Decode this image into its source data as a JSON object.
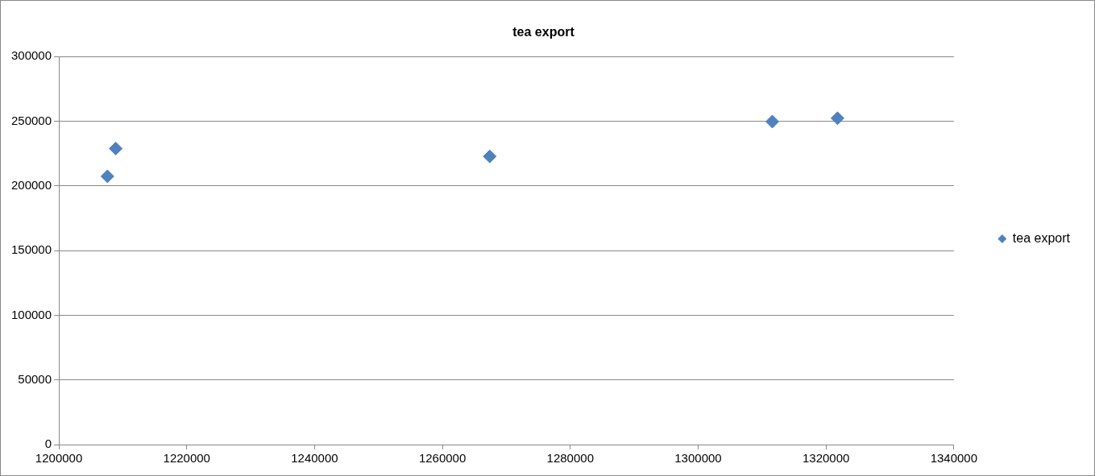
{
  "chart_data": {
    "type": "scatter",
    "title": "tea export",
    "series": [
      {
        "name": "tea export",
        "color": "#4f81bd",
        "x": [
          1207600,
          1208900,
          1267400,
          1311600,
          1321800
        ],
        "values": [
          207400,
          228900,
          222800,
          249700,
          252300
        ]
      }
    ],
    "xlim": [
      1200000,
      1340000
    ],
    "xticks": [
      1200000,
      1220000,
      1240000,
      1260000,
      1280000,
      1300000,
      1320000,
      1340000
    ],
    "ylim": [
      0,
      300000
    ],
    "yticks": [
      0,
      50000,
      100000,
      150000,
      200000,
      250000,
      300000
    ],
    "grid": "y",
    "legend": "right",
    "marker": "diamond"
  }
}
